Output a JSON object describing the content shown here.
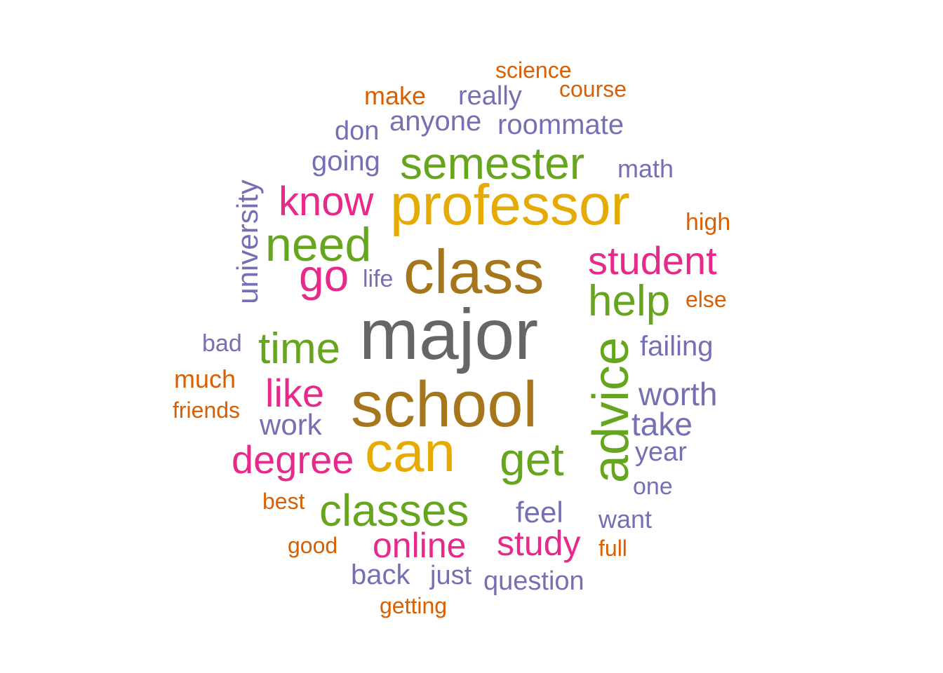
{
  "chart_data": {
    "type": "wordcloud",
    "title": "",
    "palette": {
      "gray": "#666666",
      "brown": "#A6761D",
      "gold": "#E6AB02",
      "green": "#66A61E",
      "pink": "#E7298A",
      "purple": "#7570B3",
      "orange": "#D95F02"
    },
    "words": [
      {
        "text": "major",
        "size": 100,
        "color": "#666666"
      },
      {
        "text": "school",
        "size": 90,
        "color": "#A6761D"
      },
      {
        "text": "class",
        "size": 88,
        "color": "#A6761D"
      },
      {
        "text": "professor",
        "size": 80,
        "color": "#E6AB02"
      },
      {
        "text": "can",
        "size": 80,
        "color": "#E6AB02"
      },
      {
        "text": "advice",
        "size": 70,
        "color": "#66A61E",
        "rotate": true
      },
      {
        "text": "need",
        "size": 68,
        "color": "#66A61E"
      },
      {
        "text": "semester",
        "size": 64,
        "color": "#66A61E"
      },
      {
        "text": "classes",
        "size": 64,
        "color": "#66A61E"
      },
      {
        "text": "time",
        "size": 64,
        "color": "#66A61E"
      },
      {
        "text": "get",
        "size": 64,
        "color": "#66A61E"
      },
      {
        "text": "help",
        "size": 62,
        "color": "#66A61E"
      },
      {
        "text": "go",
        "size": 62,
        "color": "#E7298A"
      },
      {
        "text": "know",
        "size": 58,
        "color": "#E7298A"
      },
      {
        "text": "student",
        "size": 56,
        "color": "#E7298A"
      },
      {
        "text": "degree",
        "size": 56,
        "color": "#E7298A"
      },
      {
        "text": "like",
        "size": 56,
        "color": "#E7298A"
      },
      {
        "text": "online",
        "size": 50,
        "color": "#E7298A"
      },
      {
        "text": "study",
        "size": 50,
        "color": "#E7298A"
      },
      {
        "text": "worth",
        "size": 44,
        "color": "#7570B3"
      },
      {
        "text": "take",
        "size": 44,
        "color": "#7570B3"
      },
      {
        "text": "work",
        "size": 42,
        "color": "#7570B3"
      },
      {
        "text": "university",
        "size": 40,
        "color": "#7570B3",
        "rotate": true
      },
      {
        "text": "feel",
        "size": 40,
        "color": "#7570B3"
      },
      {
        "text": "roommate",
        "size": 40,
        "color": "#7570B3"
      },
      {
        "text": "failing",
        "size": 38,
        "color": "#7570B3"
      },
      {
        "text": "back",
        "size": 38,
        "color": "#7570B3"
      },
      {
        "text": "going",
        "size": 38,
        "color": "#7570B3"
      },
      {
        "text": "anyone",
        "size": 38,
        "color": "#7570B3"
      },
      {
        "text": "year",
        "size": 38,
        "color": "#7570B3"
      },
      {
        "text": "question",
        "size": 38,
        "color": "#7570B3"
      },
      {
        "text": "just",
        "size": 38,
        "color": "#7570B3"
      },
      {
        "text": "really",
        "size": 38,
        "color": "#7570B3"
      },
      {
        "text": "don",
        "size": 38,
        "color": "#7570B3"
      },
      {
        "text": "want",
        "size": 36,
        "color": "#7570B3"
      },
      {
        "text": "math",
        "size": 36,
        "color": "#7570B3"
      },
      {
        "text": "bad",
        "size": 34,
        "color": "#7570B3"
      },
      {
        "text": "one",
        "size": 34,
        "color": "#7570B3"
      },
      {
        "text": "life",
        "size": 34,
        "color": "#7570B3"
      },
      {
        "text": "make",
        "size": 36,
        "color": "#D95F02"
      },
      {
        "text": "much",
        "size": 36,
        "color": "#D95F02"
      },
      {
        "text": "high",
        "size": 34,
        "color": "#D95F02"
      },
      {
        "text": "science",
        "size": 32,
        "color": "#D95F02"
      },
      {
        "text": "course",
        "size": 32,
        "color": "#D95F02"
      },
      {
        "text": "else",
        "size": 32,
        "color": "#D95F02"
      },
      {
        "text": "friends",
        "size": 32,
        "color": "#D95F02"
      },
      {
        "text": "best",
        "size": 32,
        "color": "#D95F02"
      },
      {
        "text": "good",
        "size": 32,
        "color": "#D95F02"
      },
      {
        "text": "full",
        "size": 32,
        "color": "#D95F02"
      },
      {
        "text": "getting",
        "size": 32,
        "color": "#D95F02"
      }
    ]
  }
}
